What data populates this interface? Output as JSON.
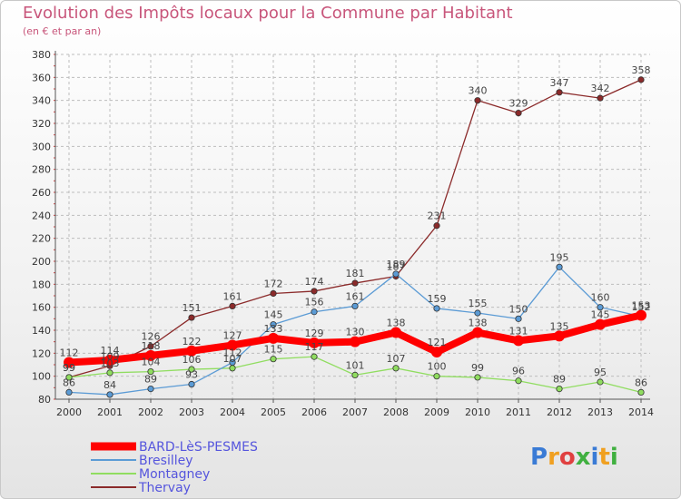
{
  "title": "Evolution des Impôts locaux pour la Commune par Habitant",
  "subtitle": "(en € et par an)",
  "logo": "Proxiti",
  "colors": {
    "title": "#c8567b",
    "grid": "#bdbdbd",
    "axis": "#555555",
    "legend_text": "#5555dd"
  },
  "chart_data": {
    "type": "line",
    "x": [
      "2000",
      "2001",
      "2002",
      "2003",
      "2004",
      "2005",
      "2006",
      "2007",
      "2008",
      "2009",
      "2010",
      "2011",
      "2012",
      "2013",
      "2014"
    ],
    "ylim": [
      80,
      380
    ],
    "yticks": [
      80,
      100,
      120,
      140,
      160,
      180,
      200,
      220,
      240,
      260,
      280,
      300,
      320,
      340,
      360,
      380
    ],
    "grid": true,
    "legend_placement": "bottom-left",
    "series": [
      {
        "name": "BARD-LèS-PESMES",
        "color": "#ff0000",
        "values": [
          112,
          114,
          118,
          122,
          127,
          133,
          129,
          130,
          138,
          121,
          138,
          131,
          135,
          145,
          153
        ],
        "labels": [
          "112",
          "114",
          "118",
          "122",
          "127",
          "133",
          "129",
          "130",
          "138",
          "121",
          "138",
          "131",
          "135",
          "145",
          "153"
        ]
      },
      {
        "name": "Bresilley",
        "color": "#5b9bd5",
        "values": [
          86,
          84,
          89,
          93,
          112,
          145,
          156,
          161,
          189,
          159,
          155,
          150,
          195,
          160,
          152
        ],
        "labels": [
          "86",
          "84",
          "89",
          "93",
          "112",
          "145",
          "156",
          "161",
          "189",
          "159",
          "155",
          "150",
          "195",
          "160",
          "152"
        ]
      },
      {
        "name": "Montagney",
        "color": "#90dd60",
        "values": [
          99,
          103,
          104,
          106,
          107,
          115,
          117,
          101,
          107,
          100,
          99,
          96,
          89,
          95,
          86
        ],
        "labels": [
          "99",
          "103",
          "104",
          "106",
          "107",
          "115",
          "117",
          "101",
          "107",
          "100",
          "99",
          "96",
          "89",
          "95",
          "86"
        ]
      },
      {
        "name": "Thervay",
        "color": "#8b2a2a",
        "values": [
          99,
          109,
          126,
          151,
          161,
          172,
          174,
          181,
          187,
          231,
          340,
          329,
          347,
          342,
          358
        ],
        "labels": [
          "99",
          "109",
          "126",
          "151",
          "161",
          "172",
          "174",
          "181",
          "187",
          "231",
          "340",
          "329",
          "347",
          "342",
          "358"
        ]
      }
    ]
  }
}
